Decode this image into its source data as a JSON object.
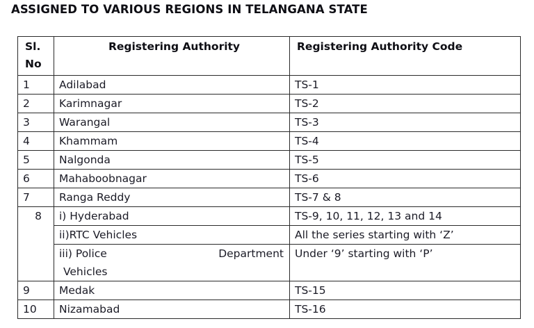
{
  "title": "ASSIGNED TO VARIOUS REGIONS IN TELANGANA STATE",
  "table": {
    "headers": {
      "sl_no": "Sl. No",
      "sl_line1": "Sl.",
      "sl_line2": "No",
      "authority": "Registering Authority",
      "code": "Registering Authority Code"
    },
    "rows": [
      {
        "sl": "1",
        "authority": "Adilabad",
        "code": "TS-1"
      },
      {
        "sl": "2",
        "authority": "Karimnagar",
        "code": "TS-2"
      },
      {
        "sl": "3",
        "authority": "Warangal",
        "code": "TS-3"
      },
      {
        "sl": "4",
        "authority": "Khammam",
        "code": "TS-4"
      },
      {
        "sl": "5",
        "authority": "Nalgonda",
        "code": "TS-5"
      },
      {
        "sl": "6",
        "authority": "Mahaboobnagar",
        "code": "TS-6"
      },
      {
        "sl": "7",
        "authority": "Ranga Reddy",
        "code": "TS-7 & 8"
      }
    ],
    "row8": {
      "sl": "8",
      "subrows": [
        {
          "authority": "i) Hyderabad",
          "code": "TS-9, 10, 11, 12, 13 and 14"
        },
        {
          "authority": "ii)RTC Vehicles",
          "code": "All the series starting with ‘Z’"
        },
        {
          "authority": "iii) Police Department Vehicles",
          "authority_part1": "iii)  Police",
          "authority_part2": "Department",
          "authority_part3": "Vehicles",
          "code": "Under ‘9’ starting with ‘P’"
        }
      ]
    },
    "tail_rows": [
      {
        "sl": "9",
        "authority": "Medak",
        "code": "TS-15"
      },
      {
        "sl": "10",
        "authority": "Nizamabad",
        "code": "TS-16"
      }
    ]
  }
}
